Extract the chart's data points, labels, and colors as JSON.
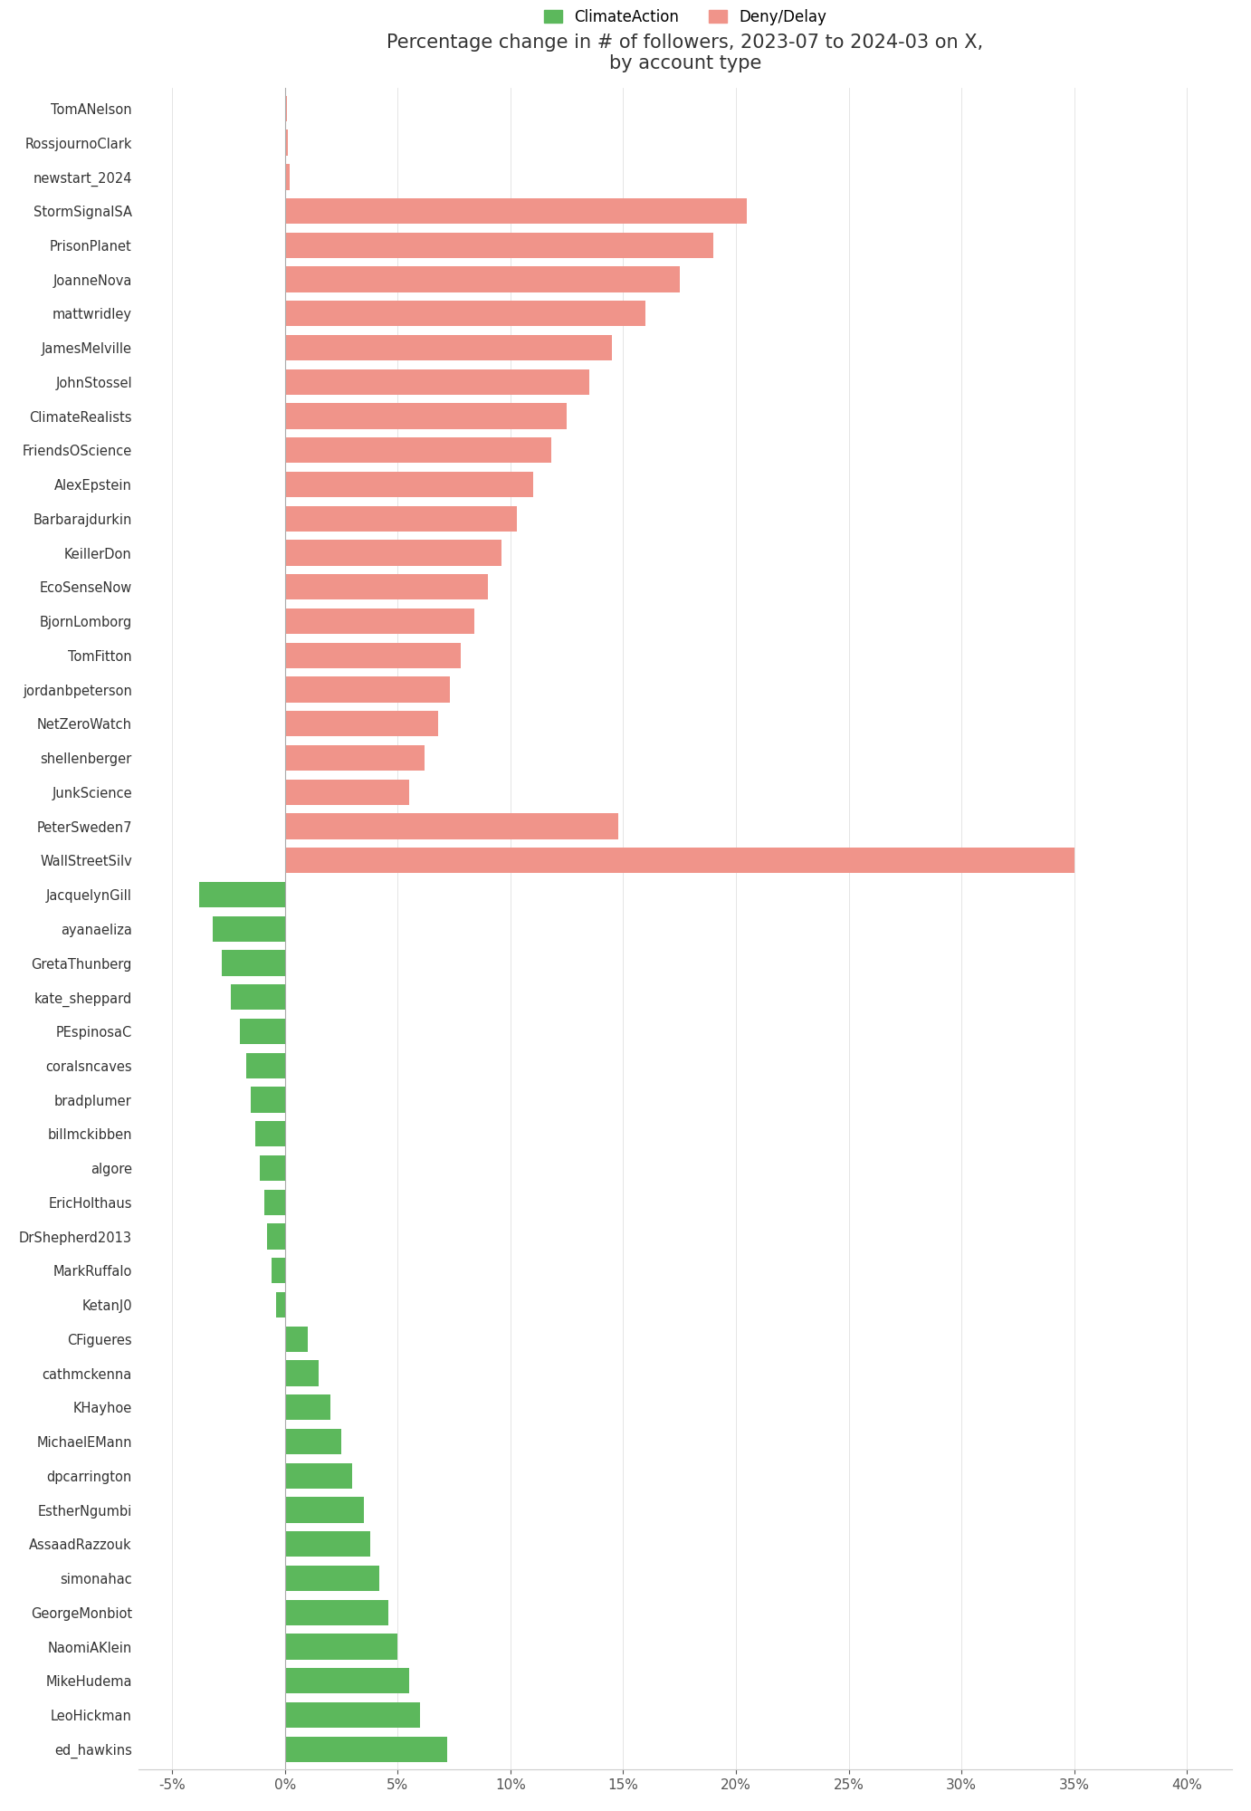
{
  "title": "Percentage change in # of followers, 2023-07 to 2024-03 on X,\nby account type",
  "legend_labels": [
    "ClimateAction",
    "Deny/Delay"
  ],
  "legend_colors": [
    "#5cb85c",
    "#f0948a"
  ],
  "deny_accounts": [
    "TomANelson",
    "RossjournoClark",
    "newstart_2024",
    "StormSignalSA",
    "PrisonPlanet",
    "JoanneNova",
    "mattwridley",
    "JamesMelville",
    "JohnStossel",
    "ClimateRealists",
    "FriendsOScience",
    "AlexEpstein",
    "Barbarajdurkin",
    "KeillerDon",
    "EcoSenseNow",
    "BjornLomborg",
    "TomFitton",
    "jordanbpeterson",
    "NetZeroWatch",
    "shellenberger",
    "JunkScience",
    "PeterSweden7",
    "WallStreetSilv"
  ],
  "deny_values": [
    0.1,
    0.15,
    0.2,
    20.5,
    19.0,
    17.5,
    16.0,
    14.5,
    13.5,
    12.5,
    11.8,
    11.0,
    10.3,
    9.6,
    9.0,
    8.4,
    7.8,
    7.3,
    6.8,
    6.2,
    5.5,
    14.8,
    35.0
  ],
  "climate_accounts": [
    "JacquelynGill",
    "ayanaeliza",
    "GretaThunberg",
    "kate_sheppard",
    "PEspinosaC",
    "coralsncaves",
    "bradplumer",
    "billmckibben",
    "algore",
    "EricHolthaus",
    "DrShepherd2013",
    "MarkRuffalo",
    "KetanJ0",
    "CFigueres",
    "cathmckenna",
    "KHayhoe",
    "MichaelEMann",
    "dpcarrington",
    "EstherNgumbi",
    "AssaadRazzouk",
    "simonahac",
    "GeorgeMonbiot",
    "NaomiAKlein",
    "MikeHudema",
    "LeoHickman",
    "ed_hawkins"
  ],
  "climate_values": [
    -3.8,
    -3.2,
    -2.8,
    -2.4,
    -2.0,
    -1.7,
    -1.5,
    -1.3,
    -1.1,
    -0.9,
    -0.8,
    -0.6,
    -0.4,
    1.0,
    1.5,
    2.0,
    2.5,
    3.0,
    3.5,
    3.8,
    4.2,
    4.6,
    5.0,
    5.5,
    6.0,
    7.2
  ],
  "deny_color": "#f0948a",
  "climate_color": "#5cb85c",
  "background_color": "#ffffff",
  "xlim": [
    -6.5,
    42
  ],
  "xtick_labels": [
    "-5%",
    "0%",
    "5%",
    "10%",
    "15%",
    "20%",
    "25%",
    "30%",
    "35%",
    "40%"
  ],
  "xtick_values": [
    -5,
    0,
    5,
    10,
    15,
    20,
    25,
    30,
    35,
    40
  ]
}
